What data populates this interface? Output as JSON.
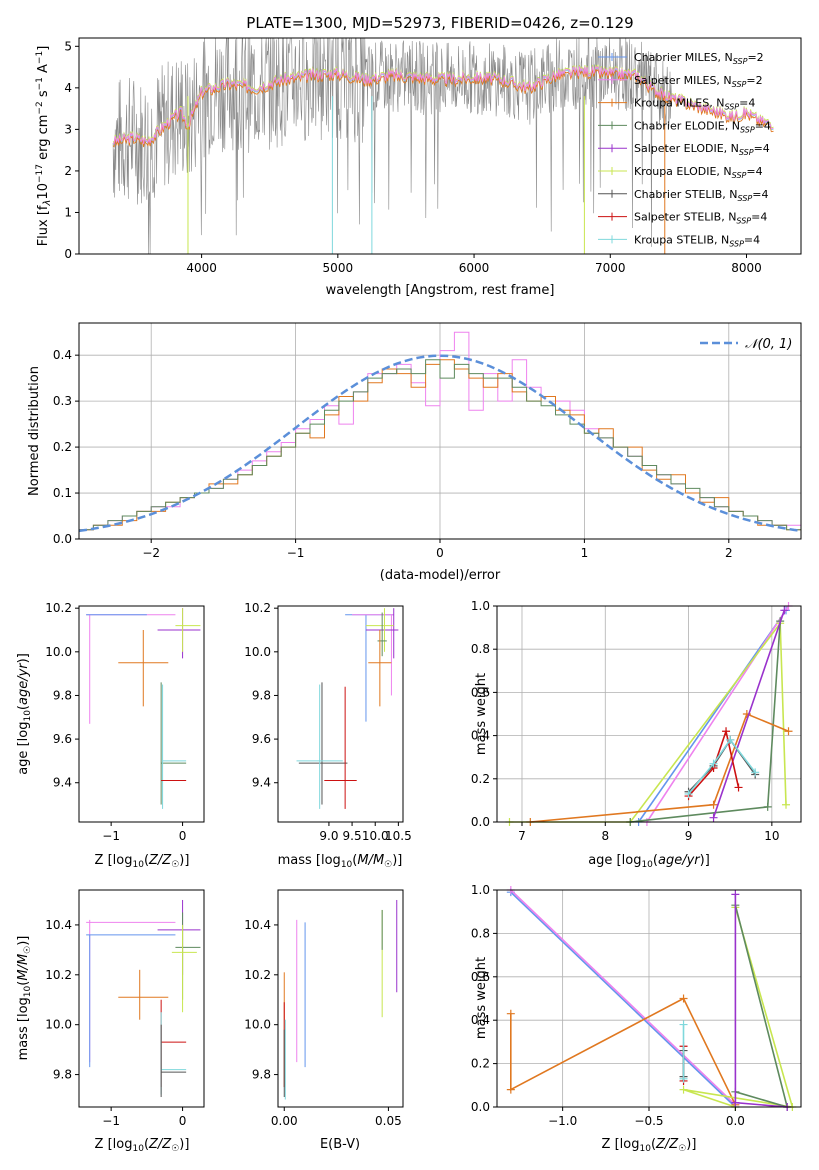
{
  "title": "PLATE=1300, MJD=52973, FIBERID=0426, z=0.129",
  "colors": {
    "chabrier_miles": "#6495ed",
    "salpeter_miles": "#ee82ee",
    "kroupa_miles": "#e07820",
    "chabrier_elodie": "#5e8a5e",
    "salpeter_elodie": "#9932cc",
    "kroupa_elodie": "#c8e650",
    "chabrier_stelib": "#555555",
    "salpeter_stelib": "#cc1111",
    "kroupa_stelib": "#7fd8dc",
    "gauss": "#5b8fd9",
    "grid": "#b0b0b0",
    "spectrum": "#888888",
    "cyan": "#7fd8dc",
    "green": "#c8e650"
  },
  "legend_spectrum": [
    {
      "key": "chabrier_miles",
      "label": "Chabrier MILES, N",
      "sub": "SSP",
      "suffix": "=2"
    },
    {
      "key": "salpeter_miles",
      "label": "Salpeter MILES, N",
      "sub": "SSP",
      "suffix": "=2"
    },
    {
      "key": "kroupa_miles",
      "label": "Kroupa MILES, N",
      "sub": "SSP",
      "suffix": "=4"
    },
    {
      "key": "chabrier_elodie",
      "label": "Chabrier ELODIE, N",
      "sub": "SSP",
      "suffix": "=4"
    },
    {
      "key": "salpeter_elodie",
      "label": "Salpeter ELODIE, N",
      "sub": "SSP",
      "suffix": "=4"
    },
    {
      "key": "kroupa_elodie",
      "label": "Kroupa ELODIE, N",
      "sub": "SSP",
      "suffix": "=4"
    },
    {
      "key": "chabrier_stelib",
      "label": "Chabrier STELIB, N",
      "sub": "SSP",
      "suffix": "=4"
    },
    {
      "key": "salpeter_stelib",
      "label": "Salpeter STELIB, N",
      "sub": "SSP",
      "suffix": "=4"
    },
    {
      "key": "kroupa_stelib",
      "label": "Kroupa STELIB, N",
      "sub": "SSP",
      "suffix": "=4"
    }
  ],
  "chart_data": [
    {
      "id": "spectrum",
      "type": "line",
      "xlabel": "wavelength [Angstrom, rest frame]",
      "ylabel": "Flux [fλ10⁻¹⁷ erg cm⁻² s⁻¹ A⁻¹]",
      "xlim": [
        3100,
        8400
      ],
      "ylim": [
        0,
        5.2
      ],
      "xticks": [
        4000,
        5000,
        6000,
        7000,
        8000
      ],
      "yticks": [
        0,
        1,
        2,
        3,
        4,
        5
      ],
      "model_curve": {
        "x": [
          3350,
          3500,
          3600,
          3700,
          3800,
          3850,
          3900,
          3950,
          4000,
          4200,
          4400,
          4600,
          4800,
          5000,
          5200,
          5400,
          5600,
          5800,
          6000,
          6200,
          6400,
          6600,
          6800,
          7000,
          7200,
          7300,
          7400,
          7500,
          7700,
          7900,
          8000,
          8100,
          8200
        ],
        "y": [
          2.7,
          2.8,
          2.7,
          3.0,
          3.3,
          3.4,
          3.1,
          3.5,
          3.9,
          4.1,
          4.0,
          4.2,
          4.3,
          4.35,
          4.2,
          4.3,
          4.25,
          4.2,
          4.25,
          4.2,
          4.0,
          4.3,
          4.4,
          4.35,
          4.3,
          4.0,
          3.8,
          3.7,
          3.5,
          3.3,
          3.4,
          3.2,
          3.1
        ]
      }
    },
    {
      "id": "residuals",
      "type": "bar",
      "xlabel": "(data-model)/error",
      "ylabel": "Normed distribution",
      "xlim": [
        -2.5,
        2.5
      ],
      "ylim": [
        0,
        0.47
      ],
      "xticks": [
        -2,
        -1,
        0,
        1,
        2
      ],
      "yticks": [
        0.0,
        0.1,
        0.2,
        0.3,
        0.4
      ],
      "legend": "N(0,1)",
      "bin_edges": [
        -2.5,
        -2.4,
        -2.3,
        -2.2,
        -2.1,
        -2.0,
        -1.9,
        -1.8,
        -1.7,
        -1.6,
        -1.5,
        -1.4,
        -1.3,
        -1.2,
        -1.1,
        -1.0,
        -0.9,
        -0.8,
        -0.7,
        -0.6,
        -0.5,
        -0.4,
        -0.3,
        -0.2,
        -0.1,
        0.0,
        0.1,
        0.2,
        0.3,
        0.4,
        0.5,
        0.6,
        0.7,
        0.8,
        0.9,
        1.0,
        1.1,
        1.2,
        1.3,
        1.4,
        1.5,
        1.6,
        1.7,
        1.8,
        1.9,
        2.0,
        2.1,
        2.2,
        2.3,
        2.4,
        2.5
      ],
      "series": [
        {
          "key": "salpeter_miles",
          "values": [
            0.02,
            0.03,
            0.04,
            0.05,
            0.06,
            0.07,
            0.07,
            0.09,
            0.1,
            0.11,
            0.13,
            0.15,
            0.17,
            0.19,
            0.21,
            0.24,
            0.26,
            0.29,
            0.25,
            0.32,
            0.36,
            0.36,
            0.38,
            0.34,
            0.29,
            0.41,
            0.45,
            0.28,
            0.36,
            0.3,
            0.39,
            0.33,
            0.31,
            0.3,
            0.28,
            0.24,
            0.22,
            0.2,
            0.18,
            0.16,
            0.14,
            0.12,
            0.1,
            0.09,
            0.07,
            0.06,
            0.05,
            0.04,
            0.03,
            0.03
          ]
        },
        {
          "key": "kroupa_miles",
          "values": [
            0.02,
            0.03,
            0.03,
            0.04,
            0.06,
            0.06,
            0.08,
            0.09,
            0.1,
            0.12,
            0.12,
            0.14,
            0.16,
            0.18,
            0.2,
            0.23,
            0.22,
            0.27,
            0.31,
            0.3,
            0.34,
            0.37,
            0.36,
            0.33,
            0.38,
            0.39,
            0.37,
            0.35,
            0.33,
            0.36,
            0.32,
            0.3,
            0.31,
            0.28,
            0.27,
            0.23,
            0.24,
            0.2,
            0.2,
            0.15,
            0.13,
            0.14,
            0.1,
            0.08,
            0.09,
            0.06,
            0.05,
            0.03,
            0.03,
            0.02
          ]
        },
        {
          "key": "chabrier_elodie",
          "values": [
            0.02,
            0.03,
            0.04,
            0.05,
            0.06,
            0.07,
            0.08,
            0.09,
            0.1,
            0.11,
            0.13,
            0.14,
            0.16,
            0.18,
            0.2,
            0.23,
            0.25,
            0.28,
            0.3,
            0.32,
            0.35,
            0.36,
            0.37,
            0.36,
            0.39,
            0.35,
            0.38,
            0.36,
            0.35,
            0.35,
            0.33,
            0.3,
            0.29,
            0.27,
            0.25,
            0.23,
            0.22,
            0.2,
            0.18,
            0.16,
            0.14,
            0.12,
            0.11,
            0.09,
            0.07,
            0.06,
            0.05,
            0.04,
            0.03,
            0.02
          ]
        }
      ],
      "gauss": {
        "mu": 0,
        "sigma": 1
      }
    },
    {
      "id": "age_vs_Z",
      "type": "scatter",
      "xlabel": "Z [log10(Z/Z☉)]",
      "ylabel": "age [log10(age/yr)]",
      "xlim": [
        -1.45,
        0.3
      ],
      "ylim": [
        9.22,
        10.21
      ],
      "xticks": [
        -1,
        0
      ],
      "yticks": [
        9.4,
        9.6,
        9.8,
        10.0,
        10.2
      ]
    },
    {
      "id": "age_vs_mass",
      "type": "scatter",
      "xlabel": "mass [log10(M/M☉)]",
      "ylabel": "",
      "xlim": [
        7.9,
        10.6
      ],
      "ylim": [
        9.22,
        10.21
      ],
      "xticks": [
        9.0,
        9.5,
        10.0,
        10.5
      ],
      "yticks": [
        9.4,
        9.6,
        9.8,
        10.0,
        10.2
      ]
    },
    {
      "id": "mass_weight_vs_age",
      "type": "line",
      "xlabel": "age  [log10(age/yr)]",
      "ylabel": "mass weight",
      "xlim": [
        6.7,
        10.35
      ],
      "ylim": [
        0,
        1
      ],
      "xticks": [
        7,
        8,
        9,
        10
      ],
      "yticks": [
        0.0,
        0.2,
        0.4,
        0.6,
        0.8,
        1.0
      ]
    },
    {
      "id": "mass_vs_Z",
      "type": "scatter",
      "xlabel": "Z [log10(Z/Z☉)]",
      "ylabel": "mass [log10(M/M☉)]",
      "xlim": [
        -1.45,
        0.3
      ],
      "ylim": [
        9.67,
        10.54
      ],
      "xticks": [
        -1,
        0
      ],
      "yticks": [
        9.8,
        10.0,
        10.2,
        10.4
      ]
    },
    {
      "id": "mass_vs_EBV",
      "type": "scatter",
      "xlabel": "E(B-V)",
      "ylabel": "",
      "xlim": [
        -0.003,
        0.057
      ],
      "ylim": [
        9.67,
        10.54
      ],
      "xticks": [
        0.0,
        0.05
      ],
      "yticks": [
        9.8,
        10.0,
        10.2,
        10.4
      ]
    },
    {
      "id": "mass_weight_vs_Z",
      "type": "line",
      "xlabel": "Z [log10(Z/Z☉)]",
      "ylabel": "mass weight",
      "xlim": [
        -1.38,
        0.38
      ],
      "ylim": [
        0,
        1
      ],
      "xticks": [
        -1.0,
        -0.5,
        0.0
      ],
      "yticks": [
        0.0,
        0.2,
        0.4,
        0.6,
        0.8,
        1.0
      ]
    }
  ],
  "tick_labels": {
    "spectrum_x": [
      "4000",
      "5000",
      "6000",
      "7000",
      "8000"
    ],
    "spectrum_y": [
      "0",
      "1",
      "2",
      "3",
      "4",
      "5"
    ],
    "resid_x": [
      "−2",
      "−1",
      "0",
      "1",
      "2"
    ],
    "resid_y": [
      "0.0",
      "0.1",
      "0.2",
      "0.3",
      "0.4"
    ],
    "p3_x": [
      "−1",
      "0"
    ],
    "p3_y": [
      "9.4",
      "9.6",
      "9.8",
      "10.0",
      "10.2"
    ],
    "p4_x": [
      "9.0",
      "9.5",
      "10.0",
      "10.5"
    ],
    "p5_x": [
      "7",
      "8",
      "9",
      "10"
    ],
    "p5_y": [
      "0.0",
      "0.2",
      "0.4",
      "0.6",
      "0.8",
      "1.0"
    ],
    "p6_y": [
      "9.8",
      "10.0",
      "10.2",
      "10.4"
    ],
    "p7_x": [
      "0.00",
      "0.05"
    ],
    "p8_x": [
      "−1.0",
      "−0.5",
      "0.0"
    ]
  }
}
